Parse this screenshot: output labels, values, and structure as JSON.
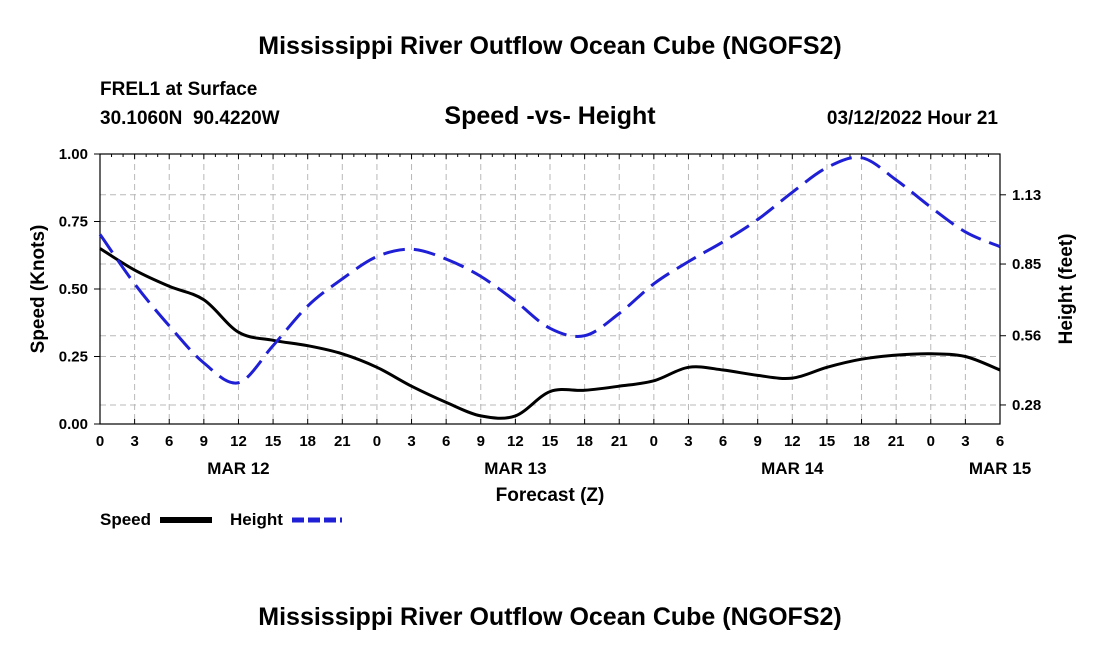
{
  "header": {
    "title": "Mississippi River Outflow Ocean Cube (NGOFS2)",
    "station": "FREL1 at Surface",
    "coords": "30.1060N  90.4220W",
    "subtitle": "Speed -vs- Height",
    "datetime": "03/12/2022 Hour 21"
  },
  "footer": {
    "title": "Mississippi River Outflow Ocean Cube (NGOFS2)"
  },
  "colors": {
    "speed": "#000000",
    "height": "#1f1fd6",
    "grid": "#b8b8b8"
  },
  "chart_data": {
    "type": "line",
    "title": "Speed -vs- Height",
    "xlabel": "Forecast (Z)",
    "ylabel": "Speed (Knots)",
    "y2label": "Height (feet)",
    "xlim": [
      0,
      78
    ],
    "ylim": [
      0,
      1.0
    ],
    "y2lim": [
      0.203,
      1.295
    ],
    "y_ticks": [
      {
        "v": 0.0,
        "label": "0.00"
      },
      {
        "v": 0.25,
        "label": "0.25"
      },
      {
        "v": 0.5,
        "label": "0.50"
      },
      {
        "v": 0.75,
        "label": "0.75"
      },
      {
        "v": 1.0,
        "label": "1.00"
      }
    ],
    "y2_ticks": [
      {
        "v": 0.28,
        "label": "0.28"
      },
      {
        "v": 0.56,
        "label": "0.56"
      },
      {
        "v": 0.85,
        "label": "0.85"
      },
      {
        "v": 1.13,
        "label": "1.13"
      }
    ],
    "x_ticks": [
      {
        "v": 0,
        "label": "0"
      },
      {
        "v": 3,
        "label": "3"
      },
      {
        "v": 6,
        "label": "6"
      },
      {
        "v": 9,
        "label": "9"
      },
      {
        "v": 12,
        "label": "12"
      },
      {
        "v": 15,
        "label": "15"
      },
      {
        "v": 18,
        "label": "18"
      },
      {
        "v": 21,
        "label": "21"
      },
      {
        "v": 24,
        "label": "0"
      },
      {
        "v": 27,
        "label": "3"
      },
      {
        "v": 30,
        "label": "6"
      },
      {
        "v": 33,
        "label": "9"
      },
      {
        "v": 36,
        "label": "12"
      },
      {
        "v": 39,
        "label": "15"
      },
      {
        "v": 42,
        "label": "18"
      },
      {
        "v": 45,
        "label": "21"
      },
      {
        "v": 48,
        "label": "0"
      },
      {
        "v": 51,
        "label": "3"
      },
      {
        "v": 54,
        "label": "6"
      },
      {
        "v": 57,
        "label": "9"
      },
      {
        "v": 60,
        "label": "12"
      },
      {
        "v": 63,
        "label": "15"
      },
      {
        "v": 66,
        "label": "18"
      },
      {
        "v": 69,
        "label": "21"
      },
      {
        "v": 72,
        "label": "0"
      },
      {
        "v": 75,
        "label": "3"
      },
      {
        "v": 78,
        "label": "6"
      }
    ],
    "date_labels": [
      {
        "v": 12,
        "label": "MAR 12"
      },
      {
        "v": 36,
        "label": "MAR 13"
      },
      {
        "v": 60,
        "label": "MAR 14"
      },
      {
        "v": 78,
        "label": "MAR 15"
      }
    ],
    "series": [
      {
        "name": "Speed",
        "axis": "left",
        "style": "solid",
        "x": [
          0,
          3,
          6,
          9,
          12,
          15,
          18,
          21,
          24,
          27,
          30,
          33,
          36,
          39,
          42,
          45,
          48,
          51,
          54,
          57,
          60,
          63,
          66,
          69,
          72,
          75,
          78
        ],
        "values": [
          0.65,
          0.57,
          0.51,
          0.46,
          0.34,
          0.31,
          0.29,
          0.26,
          0.21,
          0.14,
          0.08,
          0.03,
          0.03,
          0.12,
          0.125,
          0.14,
          0.16,
          0.21,
          0.2,
          0.18,
          0.17,
          0.21,
          0.24,
          0.255,
          0.26,
          0.25,
          0.2
        ]
      },
      {
        "name": "Height",
        "axis": "right",
        "style": "dashed",
        "x": [
          0,
          3,
          6,
          9,
          12,
          15,
          18,
          21,
          24,
          27,
          30,
          33,
          36,
          39,
          42,
          45,
          48,
          51,
          54,
          57,
          60,
          63,
          66,
          69,
          72,
          75,
          78
        ],
        "values": [
          0.97,
          0.77,
          0.6,
          0.45,
          0.37,
          0.52,
          0.68,
          0.79,
          0.88,
          0.91,
          0.87,
          0.8,
          0.7,
          0.59,
          0.56,
          0.65,
          0.77,
          0.86,
          0.94,
          1.03,
          1.14,
          1.24,
          1.28,
          1.19,
          1.08,
          0.98,
          0.92
        ]
      }
    ],
    "legend": [
      {
        "label": "Speed",
        "series": "Speed"
      },
      {
        "label": "Height",
        "series": "Height"
      }
    ]
  }
}
